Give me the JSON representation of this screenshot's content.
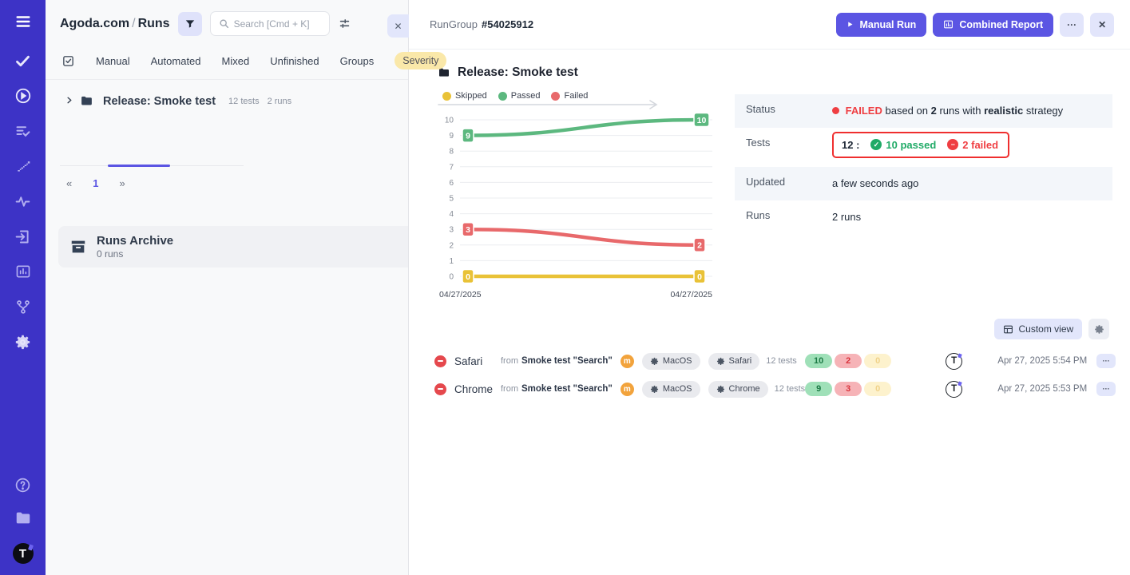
{
  "colors": {
    "sidebar_bg": "#3d33c6",
    "accent_purple": "#5b55e3",
    "lavender": "#e2e6fb",
    "passed_green": "#5cb87f",
    "failed_red": "#e8696b",
    "skipped_yellow": "#e9c237",
    "status_red": "#ef3e42",
    "severity_pill_bg": "#fae8a9"
  },
  "sidebar": {
    "icons": [
      "menu-icon",
      "check-icon",
      "play-circle-icon",
      "list-check-icon",
      "steps-icon",
      "activity-icon",
      "import-icon",
      "bar-chart-icon",
      "branch-icon",
      "gear-icon"
    ],
    "footer_icons": [
      "help-icon",
      "folder-icon",
      "logo-t"
    ],
    "logo_letter": "T"
  },
  "left_panel": {
    "breadcrumb": {
      "project": "Agoda.com",
      "separator": "/",
      "page": "Runs"
    },
    "search": {
      "placeholder": "Search [Cmd + K]"
    },
    "tabs": {
      "t0": "Manual",
      "t1": "Automated",
      "t2": "Mixed",
      "t3": "Unfinished",
      "t4": "Groups",
      "severity": "Severity"
    },
    "tree": {
      "title": "Release: Smoke test",
      "tests": "12 tests",
      "runs": "2 runs"
    },
    "pagination": {
      "prev": "«",
      "page": "1",
      "next": "»"
    },
    "archive": {
      "title": "Runs Archive",
      "subtitle": "0 runs"
    },
    "collapse": "✕"
  },
  "run_group": {
    "label": "RunGroup",
    "id": "#54025912",
    "buttons": {
      "manual_run": "Manual Run",
      "combined_report": "Combined Report",
      "more": "···",
      "close": "✕"
    },
    "title": "Release: Smoke test"
  },
  "chart_data": {
    "type": "line",
    "x": [
      "04/27/2025",
      "04/27/2025"
    ],
    "series": [
      {
        "name": "Skipped",
        "color": "#e9c237",
        "values": [
          0,
          0
        ]
      },
      {
        "name": "Passed",
        "color": "#5cb87f",
        "values": [
          9,
          10
        ]
      },
      {
        "name": "Failed",
        "color": "#e8696b",
        "values": [
          3,
          2
        ]
      }
    ],
    "ylim": [
      0,
      10
    ],
    "yticks": [
      0,
      1,
      2,
      3,
      4,
      5,
      6,
      7,
      8,
      9,
      10
    ],
    "grid": true,
    "legend_position": "top",
    "point_labels": true
  },
  "status_table": {
    "labels": {
      "status": "Status",
      "tests": "Tests",
      "updated": "Updated",
      "runs": "Runs"
    },
    "status": {
      "badge": "FAILED",
      "seg1": "based on",
      "runs_count": "2",
      "seg2": "runs with",
      "strategy": "realistic",
      "seg3": "strategy"
    },
    "tests": {
      "total": "12 :",
      "passed": "10 passed",
      "failed": "2 failed"
    },
    "updated_value": "a few seconds ago",
    "runs_value": "2 runs"
  },
  "custom_view": {
    "label": "Custom view"
  },
  "runs": [
    {
      "browser": "Safari",
      "from_label": "from",
      "source": "Smoke test \"Search\"",
      "m_badge": "m",
      "os": "MacOS",
      "env": "Safari",
      "tests": "12 tests",
      "passed": "10",
      "failed": "2",
      "skipped": "0",
      "avatar": "T",
      "date": "Apr 27, 2025 5:54 PM",
      "more": "···"
    },
    {
      "browser": "Chrome",
      "from_label": "from",
      "source": "Smoke test \"Search\"",
      "m_badge": "m",
      "os": "MacOS",
      "env": "Chrome",
      "tests": "12 tests",
      "passed": "9",
      "failed": "3",
      "skipped": "0",
      "avatar": "T",
      "date": "Apr 27, 2025 5:53 PM",
      "more": "···"
    }
  ]
}
